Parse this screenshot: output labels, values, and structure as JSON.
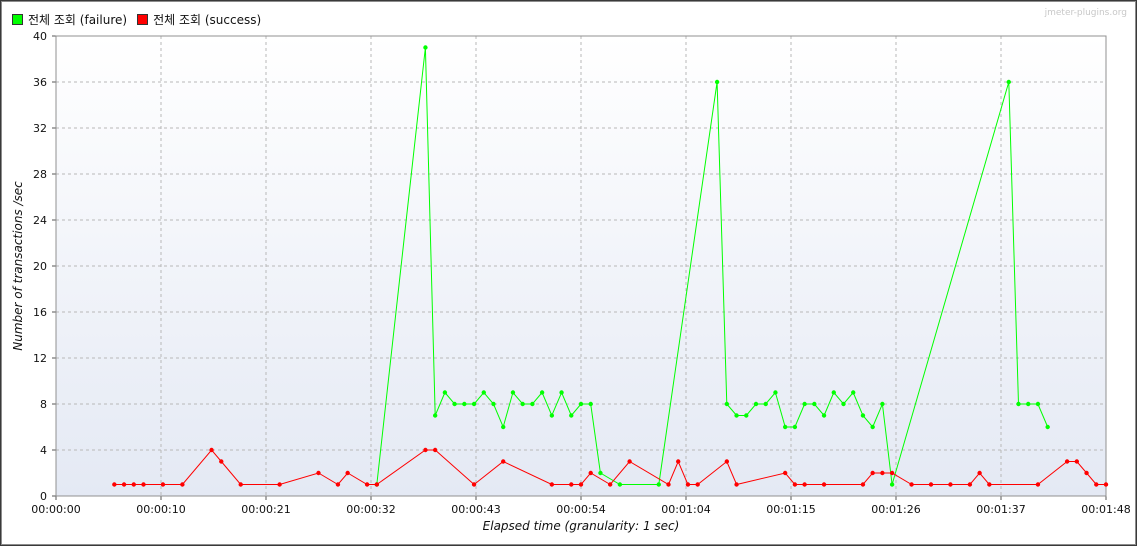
{
  "watermark": "jmeter-plugins.org",
  "legend": [
    {
      "label": "전체 조회 (failure)",
      "color": "#00ff00"
    },
    {
      "label": "전체 조회 (success)",
      "color": "#ff0000"
    }
  ],
  "chart_data": {
    "type": "line",
    "title": "",
    "xlabel": "Elapsed time (granularity: 1 sec)",
    "ylabel": "Number of transactions /sec",
    "xlim": [
      0,
      108
    ],
    "ylim": [
      0,
      40
    ],
    "grid": true,
    "legend_position": "top-left",
    "x_ticks": [
      {
        "value": 0,
        "label": "00:00:00"
      },
      {
        "value": 10.8,
        "label": "00:00:10"
      },
      {
        "value": 21.6,
        "label": "00:00:21"
      },
      {
        "value": 32.4,
        "label": "00:00:32"
      },
      {
        "value": 43.2,
        "label": "00:00:43"
      },
      {
        "value": 54,
        "label": "00:00:54"
      },
      {
        "value": 64.8,
        "label": "00:01:04"
      },
      {
        "value": 75.6,
        "label": "00:01:15"
      },
      {
        "value": 86.4,
        "label": "00:01:26"
      },
      {
        "value": 97.2,
        "label": "00:01:37"
      },
      {
        "value": 108,
        "label": "00:01:48"
      }
    ],
    "y_ticks": [
      0,
      4,
      8,
      12,
      16,
      20,
      24,
      28,
      32,
      36,
      40
    ],
    "series": [
      {
        "name": "전체 조회 (failure)",
        "color": "#00ff00",
        "points": [
          [
            33,
            1
          ],
          [
            38,
            39
          ],
          [
            39,
            7
          ],
          [
            40,
            9
          ],
          [
            41,
            8
          ],
          [
            42,
            8
          ],
          [
            43,
            8
          ],
          [
            44,
            9
          ],
          [
            45,
            8
          ],
          [
            46,
            6
          ],
          [
            47,
            9
          ],
          [
            48,
            8
          ],
          [
            49,
            8
          ],
          [
            50,
            9
          ],
          [
            51,
            7
          ],
          [
            52,
            9
          ],
          [
            53,
            7
          ],
          [
            54,
            8
          ],
          [
            55,
            8
          ],
          [
            56,
            2
          ],
          [
            58,
            1
          ],
          [
            62,
            1
          ],
          [
            68,
            36
          ],
          [
            69,
            8
          ],
          [
            70,
            7
          ],
          [
            71,
            7
          ],
          [
            72,
            8
          ],
          [
            73,
            8
          ],
          [
            74,
            9
          ],
          [
            75,
            6
          ],
          [
            76,
            6
          ],
          [
            77,
            8
          ],
          [
            78,
            8
          ],
          [
            79,
            7
          ],
          [
            80,
            9
          ],
          [
            81,
            8
          ],
          [
            82,
            9
          ],
          [
            83,
            7
          ],
          [
            84,
            6
          ],
          [
            85,
            8
          ],
          [
            86,
            1
          ],
          [
            98,
            36
          ],
          [
            99,
            8
          ],
          [
            100,
            8
          ],
          [
            101,
            8
          ],
          [
            102,
            6
          ]
        ]
      },
      {
        "name": "전체 조회 (success)",
        "color": "#ff0000",
        "points": [
          [
            6,
            1
          ],
          [
            7,
            1
          ],
          [
            8,
            1
          ],
          [
            9,
            1
          ],
          [
            11,
            1
          ],
          [
            13,
            1
          ],
          [
            16,
            4
          ],
          [
            17,
            3
          ],
          [
            19,
            1
          ],
          [
            23,
            1
          ],
          [
            27,
            2
          ],
          [
            29,
            1
          ],
          [
            30,
            2
          ],
          [
            32,
            1
          ],
          [
            33,
            1
          ],
          [
            38,
            4
          ],
          [
            39,
            4
          ],
          [
            43,
            1
          ],
          [
            46,
            3
          ],
          [
            51,
            1
          ],
          [
            53,
            1
          ],
          [
            54,
            1
          ],
          [
            55,
            2
          ],
          [
            57,
            1
          ],
          [
            59,
            3
          ],
          [
            63,
            1
          ],
          [
            64,
            3
          ],
          [
            65,
            1
          ],
          [
            66,
            1
          ],
          [
            69,
            3
          ],
          [
            70,
            1
          ],
          [
            75,
            2
          ],
          [
            76,
            1
          ],
          [
            77,
            1
          ],
          [
            79,
            1
          ],
          [
            83,
            1
          ],
          [
            84,
            2
          ],
          [
            85,
            2
          ],
          [
            86,
            2
          ],
          [
            88,
            1
          ],
          [
            90,
            1
          ],
          [
            92,
            1
          ],
          [
            94,
            1
          ],
          [
            95,
            2
          ],
          [
            96,
            1
          ],
          [
            101,
            1
          ],
          [
            104,
            3
          ],
          [
            105,
            3
          ],
          [
            106,
            2
          ],
          [
            107,
            1
          ],
          [
            108,
            1
          ]
        ]
      }
    ]
  }
}
